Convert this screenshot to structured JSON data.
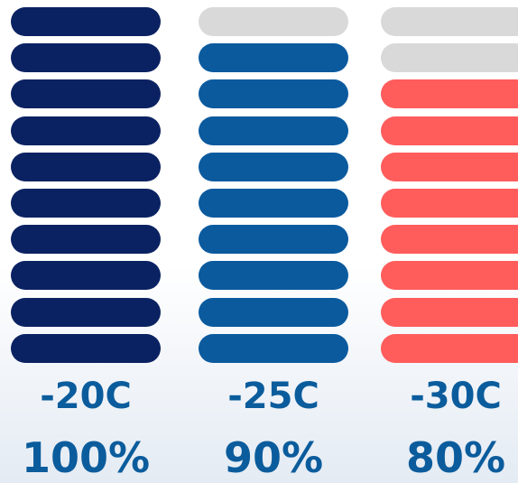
{
  "chart_data": {
    "type": "bar",
    "categories": [
      "-20C",
      "-25C",
      "-30C"
    ],
    "values": [
      100,
      90,
      80
    ],
    "value_labels": [
      "100%",
      "90%",
      "80%"
    ],
    "segments_total": 10,
    "segments_filled": [
      10,
      9,
      8
    ],
    "colors": {
      "filled": [
        "#0b2262",
        "#0b5a9e",
        "#ff5c5c"
      ],
      "empty": "#d9d9d9",
      "label": "#0b5c9c"
    }
  }
}
